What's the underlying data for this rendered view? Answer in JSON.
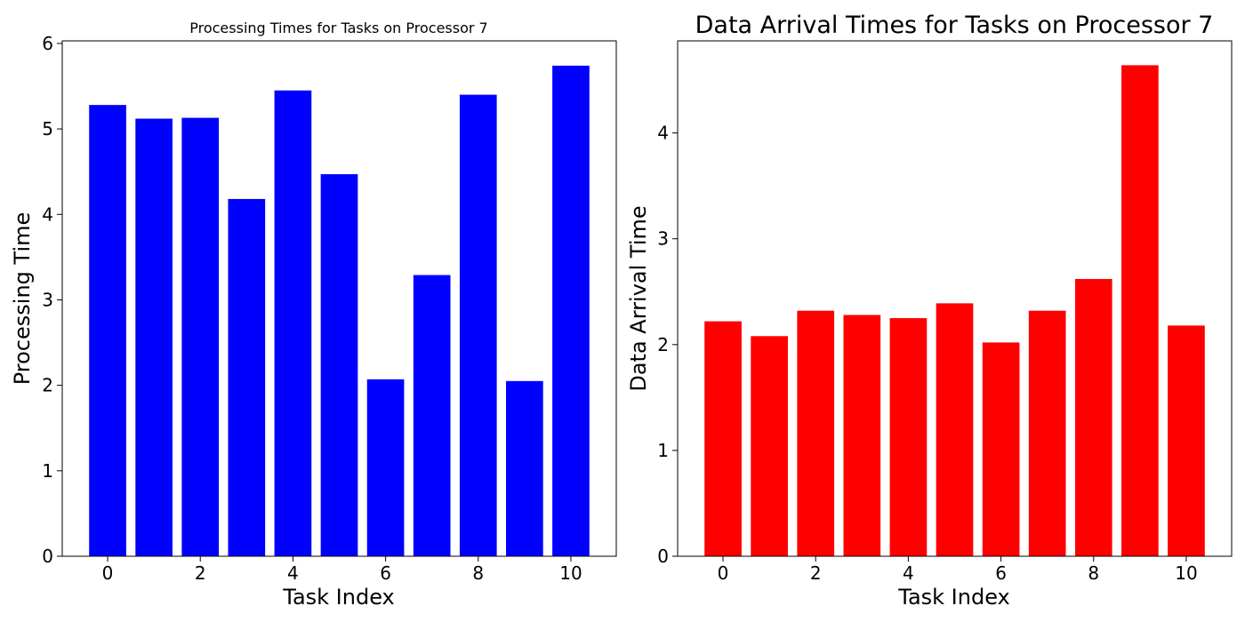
{
  "chart_data": [
    {
      "type": "bar",
      "title": "Processing Times for Tasks on Processor 7",
      "xlabel": "Task Index",
      "ylabel": "Processing Time",
      "categories": [
        0,
        1,
        2,
        3,
        4,
        5,
        6,
        7,
        8,
        9,
        10
      ],
      "values": [
        5.28,
        5.12,
        5.13,
        4.18,
        5.45,
        4.47,
        2.07,
        3.29,
        5.4,
        2.05,
        5.74
      ],
      "xticks": [
        0,
        2,
        4,
        6,
        8,
        10
      ],
      "yticks": [
        0,
        1,
        2,
        3,
        4,
        5,
        6
      ],
      "xlim": [
        -0.98,
        10.98
      ],
      "ylim": [
        0,
        6.03
      ],
      "color": "#0000ff",
      "grid": false
    },
    {
      "type": "bar",
      "title": "Data Arrival Times for Tasks on Processor 7",
      "xlabel": "Task Index",
      "ylabel": "Data Arrival Time",
      "categories": [
        0,
        1,
        2,
        3,
        4,
        5,
        6,
        7,
        8,
        9,
        10
      ],
      "values": [
        2.22,
        2.08,
        2.32,
        2.28,
        2.25,
        2.39,
        2.02,
        2.32,
        2.62,
        4.64,
        2.18
      ],
      "xticks": [
        0,
        2,
        4,
        6,
        8,
        10
      ],
      "yticks": [
        0,
        1,
        2,
        3,
        4
      ],
      "xlim": [
        -0.98,
        10.98
      ],
      "ylim": [
        0,
        4.87
      ],
      "color": "#ff0000",
      "grid": false
    }
  ]
}
